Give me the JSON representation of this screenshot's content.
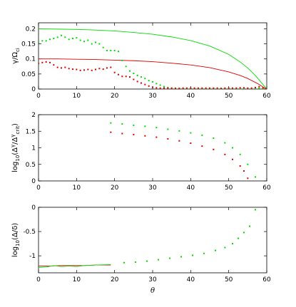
{
  "chart_data": [
    {
      "type": "scatter",
      "ylabel": "γ/Ω_ci",
      "ylabel_parts": [
        "γ/Ω",
        "ci"
      ],
      "xlim": [
        0,
        60
      ],
      "ylim": [
        0,
        0.22
      ],
      "xticks": [
        0,
        10,
        20,
        30,
        40,
        50,
        60
      ],
      "yticks": [
        0,
        0.05,
        0.1,
        0.15,
        0.2
      ],
      "ytick_labels": [
        "0",
        "0.05",
        "0.1",
        "0.15",
        "0.2"
      ],
      "grid": false,
      "series": [
        {
          "color": "#00dd00",
          "style": "line",
          "x": [
            0,
            5,
            10,
            15,
            20,
            25,
            30,
            35,
            40,
            45,
            50,
            53,
            55,
            57,
            58,
            59,
            60
          ],
          "y": [
            0.2,
            0.199,
            0.198,
            0.196,
            0.193,
            0.188,
            0.182,
            0.173,
            0.161,
            0.143,
            0.115,
            0.09,
            0.07,
            0.045,
            0.03,
            0.015,
            0.0
          ]
        },
        {
          "color": "#dd0000",
          "style": "line",
          "x": [
            0,
            5,
            10,
            15,
            20,
            25,
            30,
            35,
            40,
            45,
            50,
            53,
            55,
            57,
            58,
            59,
            60
          ],
          "y": [
            0.1,
            0.1,
            0.099,
            0.098,
            0.096,
            0.094,
            0.091,
            0.086,
            0.08,
            0.071,
            0.057,
            0.045,
            0.035,
            0.022,
            0.015,
            0.007,
            0.0
          ]
        },
        {
          "color": "#00dd00",
          "style": "points",
          "x": [
            0,
            1,
            2,
            3,
            4,
            5,
            6,
            7,
            8,
            9,
            10,
            11,
            12,
            13,
            14,
            15,
            16,
            17,
            18,
            19,
            20,
            21,
            22,
            23,
            24,
            25,
            26,
            27,
            28,
            29,
            30,
            31,
            32,
            33,
            34,
            35,
            36,
            37,
            38,
            39,
            40,
            41,
            42,
            43,
            44,
            45,
            46,
            47,
            48,
            49,
            50,
            51,
            52,
            53,
            54,
            55,
            56,
            57,
            58,
            59
          ],
          "y": [
            0.155,
            0.16,
            0.16,
            0.165,
            0.168,
            0.172,
            0.178,
            0.172,
            0.165,
            0.168,
            0.17,
            0.162,
            0.158,
            0.162,
            0.15,
            0.155,
            0.15,
            0.138,
            0.128,
            0.128,
            0.128,
            0.125,
            0.095,
            0.075,
            0.06,
            0.052,
            0.045,
            0.04,
            0.035,
            0.028,
            0.024,
            0.018,
            0.013,
            0.008,
            0.005,
            0.003,
            0.003,
            0.002,
            0.002,
            0.002,
            0.002,
            0.002,
            0.002,
            0.002,
            0.002,
            0.002,
            0.002,
            0.002,
            0.002,
            0.002,
            0.002,
            0.002,
            0.002,
            0.002,
            0.002,
            0.002,
            0.002,
            0.002,
            0.003,
            0.002
          ]
        },
        {
          "color": "#dd0000",
          "style": "points",
          "x": [
            0,
            1,
            2,
            3,
            4,
            5,
            6,
            7,
            8,
            9,
            10,
            11,
            12,
            13,
            14,
            15,
            16,
            17,
            18,
            19,
            20,
            21,
            22,
            23,
            24,
            25,
            26,
            27,
            28,
            29,
            30,
            31,
            32,
            33,
            34,
            35,
            36,
            37,
            38,
            39,
            40,
            41,
            42,
            43,
            44,
            45,
            46,
            47,
            48,
            49,
            50,
            51,
            52,
            53,
            54,
            55,
            56,
            57,
            58,
            59
          ],
          "y": [
            0.085,
            0.088,
            0.09,
            0.088,
            0.08,
            0.072,
            0.07,
            0.072,
            0.068,
            0.066,
            0.065,
            0.062,
            0.063,
            0.065,
            0.062,
            0.065,
            0.068,
            0.066,
            0.07,
            0.072,
            0.055,
            0.048,
            0.042,
            0.042,
            0.04,
            0.032,
            0.025,
            0.02,
            0.015,
            0.01,
            0.006,
            0.004,
            0.003,
            0.003,
            0.003,
            0.003,
            0.002,
            0.002,
            0.003,
            0.003,
            0.003,
            0.003,
            0.003,
            0.003,
            0.003,
            0.003,
            0.003,
            0.003,
            0.002,
            0.003,
            0.003,
            0.003,
            0.003,
            0.004,
            0.004,
            0.003,
            0.003,
            0.005,
            0.008,
            0.004
          ]
        }
      ]
    },
    {
      "type": "scatter",
      "ylabel": "log10(Δᵞ/Δᵞcrit)",
      "ylabel_parts": [
        "log",
        "10",
        "(Δ",
        "γ",
        "/Δ",
        "γ",
        "crit",
        ")"
      ],
      "xlim": [
        0,
        60
      ],
      "ylim": [
        0,
        2
      ],
      "xticks": [
        0,
        10,
        20,
        30,
        40,
        50,
        60
      ],
      "yticks": [
        0,
        0.5,
        1,
        1.5,
        2
      ],
      "ytick_labels": [
        "0",
        "0.5",
        "1",
        "1.5",
        "2"
      ],
      "grid": false,
      "series": [
        {
          "color": "#00dd00",
          "style": "points",
          "x": [
            19,
            22,
            25,
            28,
            31,
            34,
            37,
            40,
            43,
            46,
            49,
            51,
            53,
            55,
            57
          ],
          "y": [
            1.75,
            1.72,
            1.68,
            1.65,
            1.61,
            1.56,
            1.51,
            1.45,
            1.38,
            1.29,
            1.15,
            1.0,
            0.8,
            0.5,
            0.12
          ]
        },
        {
          "color": "#dd0000",
          "style": "points",
          "x": [
            19,
            22,
            25,
            28,
            31,
            34,
            37,
            40,
            43,
            46,
            49,
            51,
            53,
            54,
            55
          ],
          "y": [
            1.47,
            1.43,
            1.4,
            1.36,
            1.32,
            1.27,
            1.21,
            1.14,
            1.05,
            0.95,
            0.8,
            0.65,
            0.45,
            0.3,
            0.08
          ]
        }
      ]
    },
    {
      "type": "scatter",
      "ylabel": "log10(Δ/δ)",
      "ylabel_parts": [
        "log",
        "10",
        "(Δ/δ)"
      ],
      "xlabel": "θ",
      "xlim": [
        0,
        60
      ],
      "ylim": [
        -1.35,
        0.0
      ],
      "xticks": [
        0,
        10,
        20,
        30,
        40,
        50,
        60
      ],
      "yticks": [
        -1,
        -0.5,
        0
      ],
      "ytick_labels": [
        "-1",
        "-0.5",
        "0"
      ],
      "grid": false,
      "series": [
        {
          "color": "#dd0000",
          "style": "line",
          "x": [
            0,
            3,
            6,
            9,
            12,
            15,
            19
          ],
          "y": [
            -1.21,
            -1.21,
            -1.2,
            -1.2,
            -1.2,
            -1.19,
            -1.19
          ]
        },
        {
          "color": "#00dd00",
          "style": "line",
          "x": [
            0,
            2,
            4,
            6,
            8,
            10,
            12,
            15,
            19
          ],
          "y": [
            -1.24,
            -1.23,
            -1.2,
            -1.22,
            -1.21,
            -1.22,
            -1.2,
            -1.19,
            -1.18
          ]
        },
        {
          "color": "#00dd00",
          "style": "points",
          "x": [
            22.5,
            25.5,
            28.5,
            31.5,
            34.5,
            37.5,
            40.5,
            43.5,
            46.5,
            49,
            51,
            52.5,
            54,
            55.5,
            57
          ],
          "y": [
            -1.14,
            -1.13,
            -1.11,
            -1.08,
            -1.05,
            -1.02,
            -0.99,
            -0.95,
            -0.89,
            -0.83,
            -0.75,
            -0.64,
            -0.52,
            -0.39,
            -0.05
          ]
        }
      ]
    }
  ]
}
